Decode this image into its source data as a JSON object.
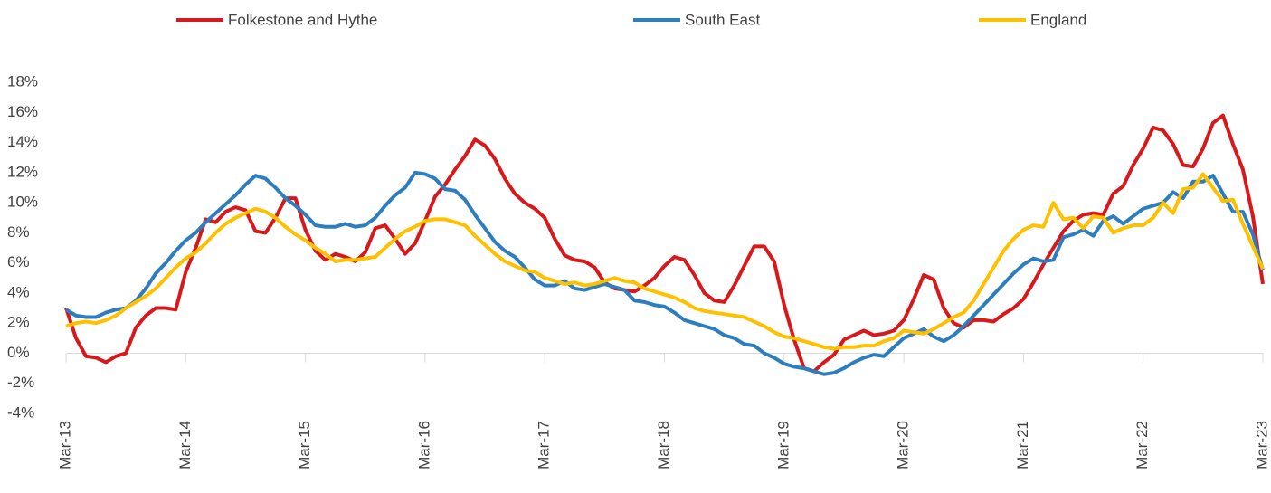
{
  "chart_data": {
    "type": "line",
    "categories": [
      "Mar-13",
      null,
      null,
      null,
      null,
      null,
      null,
      null,
      null,
      null,
      null,
      null,
      "Mar-14",
      null,
      null,
      null,
      null,
      null,
      null,
      null,
      null,
      null,
      null,
      null,
      "Mar-15",
      null,
      null,
      null,
      null,
      null,
      null,
      null,
      null,
      null,
      null,
      null,
      "Mar-16",
      null,
      null,
      null,
      null,
      null,
      null,
      null,
      null,
      null,
      null,
      null,
      "Mar-17",
      null,
      null,
      null,
      null,
      null,
      null,
      null,
      null,
      null,
      null,
      null,
      "Mar-18",
      null,
      null,
      null,
      null,
      null,
      null,
      null,
      null,
      null,
      null,
      null,
      "Mar-19",
      null,
      null,
      null,
      null,
      null,
      null,
      null,
      null,
      null,
      null,
      null,
      "Mar-20",
      null,
      null,
      null,
      null,
      null,
      null,
      null,
      null,
      null,
      null,
      null,
      "Mar-21",
      null,
      null,
      null,
      null,
      null,
      null,
      null,
      null,
      null,
      null,
      null,
      "Mar-22",
      null,
      null,
      null,
      null,
      null,
      null,
      null,
      null,
      null,
      null,
      null,
      "Mar-23"
    ],
    "series": [
      {
        "name": "Folkestone and Hythe",
        "color": "#d7191c",
        "values": [
          3.0,
          1.0,
          -0.2,
          -0.3,
          -0.6,
          -0.2,
          0.0,
          1.7,
          2.5,
          3.0,
          3.0,
          2.9,
          5.4,
          7.0,
          8.9,
          8.7,
          9.4,
          9.7,
          9.5,
          8.1,
          8.0,
          9.0,
          10.3,
          10.3,
          8.2,
          6.8,
          6.2,
          6.6,
          6.4,
          6.1,
          6.7,
          8.3,
          8.5,
          7.6,
          6.6,
          7.3,
          8.8,
          10.4,
          11.2,
          12.2,
          13.1,
          14.2,
          13.8,
          12.9,
          11.6,
          10.6,
          10.0,
          9.6,
          9.0,
          7.6,
          6.5,
          6.2,
          6.1,
          5.7,
          4.7,
          4.3,
          4.2,
          4.1,
          4.5,
          5.0,
          5.8,
          6.4,
          6.2,
          5.2,
          4.0,
          3.5,
          3.4,
          4.5,
          5.8,
          7.1,
          7.1,
          6.1,
          3.2,
          0.9,
          -1.0,
          -1.2,
          -0.6,
          -0.1,
          0.9,
          1.2,
          1.5,
          1.2,
          1.3,
          1.5,
          2.2,
          3.6,
          5.2,
          4.9,
          3.0,
          2.0,
          1.7,
          2.2,
          2.2,
          2.1,
          2.6,
          3.0,
          3.6,
          4.7,
          5.9,
          7.0,
          8.1,
          8.8,
          9.2,
          9.3,
          9.2,
          10.6,
          11.1,
          12.5,
          13.6,
          15.0,
          14.8,
          13.9,
          12.5,
          12.4,
          13.6,
          15.3,
          15.8,
          13.9,
          12.2,
          9.1,
          4.6
        ]
      },
      {
        "name": "South East",
        "color": "#2e7ebd",
        "values": [
          2.9,
          2.5,
          2.4,
          2.4,
          2.7,
          2.9,
          3.0,
          3.5,
          4.3,
          5.3,
          6.0,
          6.8,
          7.5,
          8.0,
          8.7,
          9.3,
          9.9,
          10.5,
          11.2,
          11.8,
          11.6,
          11.0,
          10.3,
          9.8,
          9.2,
          8.5,
          8.4,
          8.4,
          8.6,
          8.4,
          8.5,
          9.0,
          9.8,
          10.5,
          11.0,
          12.0,
          11.9,
          11.6,
          10.9,
          10.8,
          10.2,
          9.2,
          8.3,
          7.4,
          6.8,
          6.4,
          5.7,
          4.9,
          4.5,
          4.5,
          4.8,
          4.3,
          4.2,
          4.4,
          4.6,
          4.4,
          4.2,
          3.5,
          3.4,
          3.2,
          3.1,
          2.7,
          2.2,
          2.0,
          1.8,
          1.6,
          1.2,
          1.0,
          0.6,
          0.5,
          0.0,
          -0.3,
          -0.7,
          -0.9,
          -1.0,
          -1.2,
          -1.4,
          -1.3,
          -1.0,
          -0.6,
          -0.3,
          -0.1,
          -0.2,
          0.4,
          1.0,
          1.3,
          1.6,
          1.1,
          0.8,
          1.2,
          1.8,
          2.5,
          3.2,
          3.9,
          4.6,
          5.3,
          5.9,
          6.3,
          6.1,
          6.2,
          7.7,
          7.9,
          8.2,
          7.8,
          8.8,
          9.1,
          8.6,
          9.1,
          9.6,
          9.8,
          10.0,
          10.7,
          10.3,
          11.4,
          11.4,
          11.8,
          10.6,
          9.4,
          9.4,
          7.9,
          5.5
        ]
      },
      {
        "name": "England",
        "color": "#ffc000",
        "values": [
          1.8,
          2.0,
          2.1,
          2.0,
          2.2,
          2.5,
          3.0,
          3.4,
          3.8,
          4.3,
          5.0,
          5.7,
          6.3,
          6.7,
          7.3,
          8.0,
          8.6,
          9.0,
          9.3,
          9.6,
          9.4,
          9.0,
          8.4,
          7.9,
          7.5,
          7.0,
          6.6,
          6.1,
          6.2,
          6.2,
          6.3,
          6.4,
          7.0,
          7.6,
          8.1,
          8.4,
          8.8,
          8.9,
          8.9,
          8.7,
          8.5,
          7.8,
          7.2,
          6.6,
          6.1,
          5.8,
          5.5,
          5.4,
          5.0,
          4.8,
          4.6,
          4.7,
          4.5,
          4.6,
          4.8,
          5.0,
          4.8,
          4.7,
          4.3,
          4.1,
          3.9,
          3.7,
          3.4,
          3.0,
          2.8,
          2.7,
          2.6,
          2.5,
          2.4,
          2.1,
          1.8,
          1.4,
          1.1,
          1.0,
          0.8,
          0.6,
          0.4,
          0.3,
          0.4,
          0.4,
          0.5,
          0.5,
          0.8,
          1.0,
          1.5,
          1.4,
          1.3,
          1.6,
          2.0,
          2.4,
          2.7,
          3.5,
          4.6,
          5.7,
          6.8,
          7.6,
          8.2,
          8.5,
          8.4,
          10.0,
          8.9,
          9.0,
          8.3,
          9.1,
          9.0,
          8.0,
          8.3,
          8.5,
          8.5,
          9.0,
          10.0,
          9.3,
          10.9,
          11.0,
          11.9,
          11.0,
          10.1,
          10.2,
          8.6,
          7.1,
          5.6
        ]
      }
    ],
    "ylim": [
      -4,
      18
    ],
    "yticks": [
      {
        "value": -4,
        "label": "-4%"
      },
      {
        "value": -2,
        "label": "-2%"
      },
      {
        "value": 0,
        "label": "0%"
      },
      {
        "value": 2,
        "label": "2%"
      },
      {
        "value": 4,
        "label": "4%"
      },
      {
        "value": 6,
        "label": "6%"
      },
      {
        "value": 8,
        "label": "8%"
      },
      {
        "value": 10,
        "label": "10%"
      },
      {
        "value": 12,
        "label": "12%"
      },
      {
        "value": 14,
        "label": "14%"
      },
      {
        "value": 16,
        "label": "16%"
      },
      {
        "value": 18,
        "label": "18%"
      }
    ],
    "grid": false,
    "legend": "top"
  }
}
